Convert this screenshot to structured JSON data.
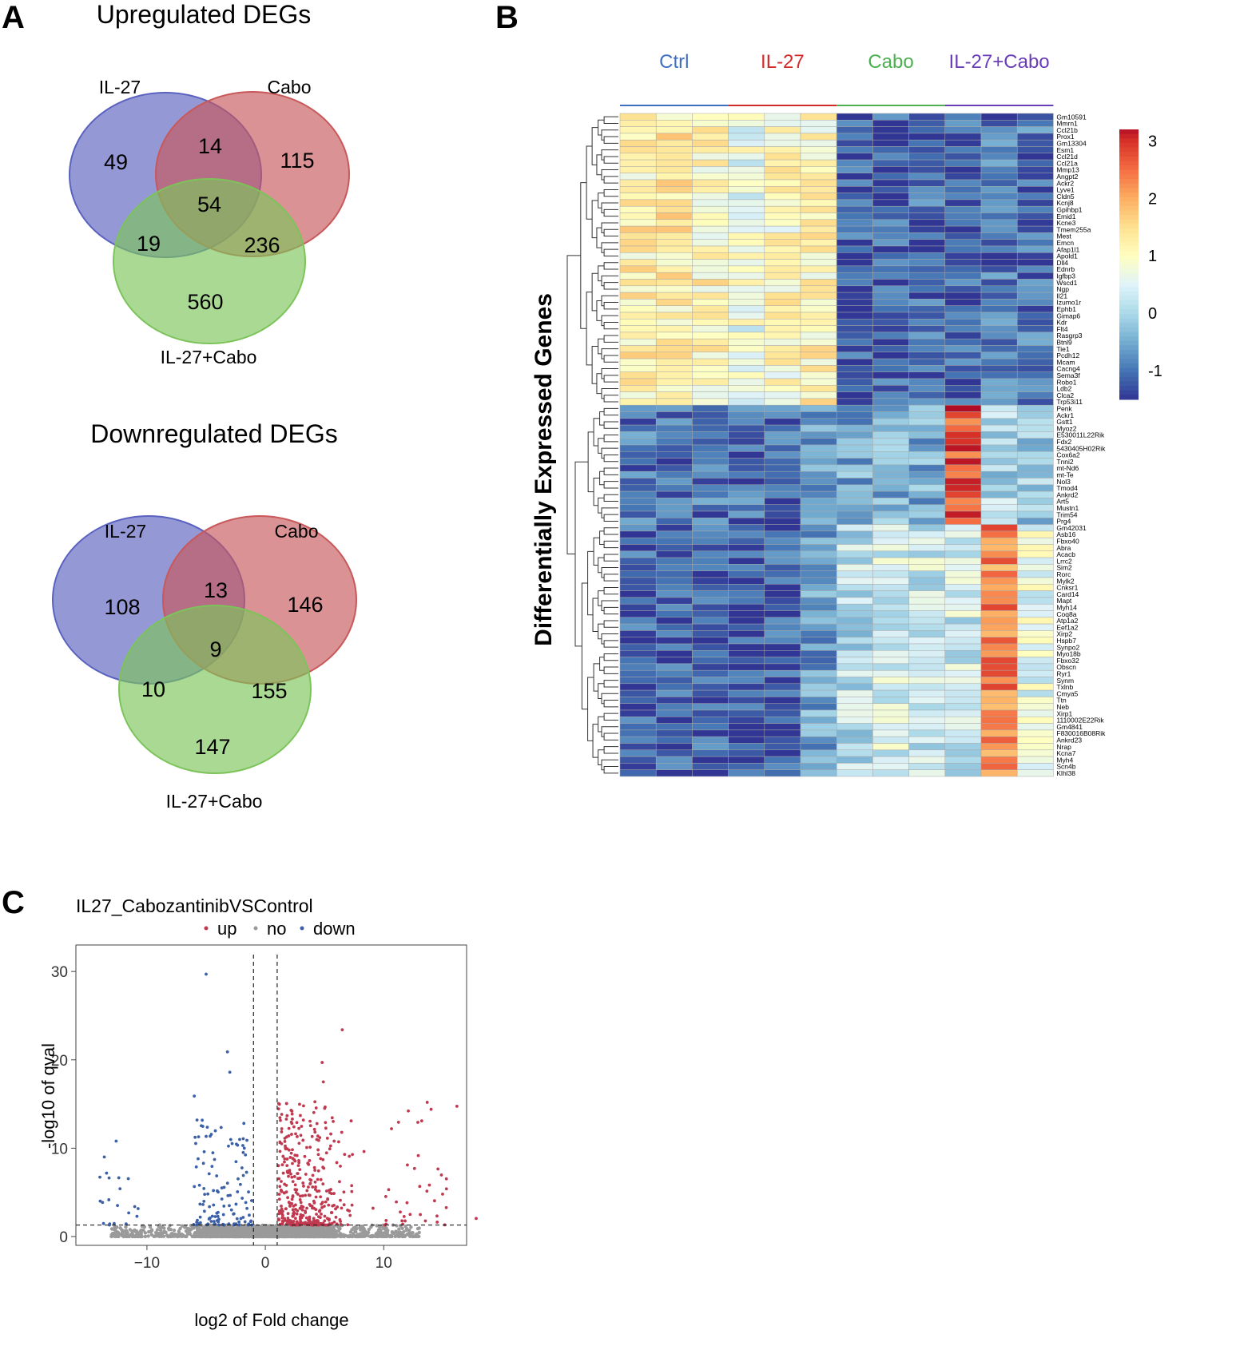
{
  "panels": {
    "a": "A",
    "b": "B",
    "c": "C"
  },
  "venn_up": {
    "title": "Upregulated DEGs",
    "labels": {
      "a": "IL-27",
      "b": "Cabo",
      "c": "IL-27+Cabo"
    },
    "counts": {
      "a_only": "49",
      "ab": "14",
      "b_only": "115",
      "abc": "54",
      "ac": "19",
      "bc": "236",
      "c_only": "560"
    },
    "colors": {
      "a": "#5a62c0",
      "b": "#c8585a",
      "c": "#7cc45a"
    }
  },
  "venn_down": {
    "title": "Downregulated DEGs",
    "labels": {
      "a": "IL-27",
      "b": "Cabo",
      "c": "IL-27+Cabo"
    },
    "counts": {
      "a_only": "108",
      "ab": "13",
      "b_only": "146",
      "abc": "9",
      "ac": "10",
      "bc": "155",
      "c_only": "147"
    },
    "colors": {
      "a": "#5a62c0",
      "b": "#c8585a",
      "c": "#7cc45a"
    }
  },
  "chart_data": [
    {
      "type": "heatmap",
      "ylabel": "Differentially Expressed Genes",
      "groups": [
        {
          "name": "Ctrl",
          "color": "#3f6fc0"
        },
        {
          "name": "IL-27",
          "color": "#d42a2a"
        },
        {
          "name": "Cabo",
          "color": "#4caf50"
        },
        {
          "name": "IL-27+Cabo",
          "color": "#6a3db8"
        }
      ],
      "genes": [
        "Gm10591",
        "Mmrn1",
        "Ccl21b",
        "Prox1",
        "Gm13304",
        "Esm1",
        "Ccl21d",
        "Ccl21a",
        "Mmp13",
        "Angpt2",
        "Ackr2",
        "Lyve1",
        "Cldn5",
        "Kcnj8",
        "Gpihbp1",
        "Emid1",
        "Kcne3",
        "Tmem255a",
        "Mest",
        "Emcn",
        "Afap1l1",
        "Apold1",
        "Dll4",
        "Ednrb",
        "Igfbp3",
        "Wscd1",
        "Ngp",
        "Il21",
        "Izumo1r",
        "Ephb1",
        "Gimap6",
        "Kdr",
        "Flt4",
        "Rasgrp3",
        "Btnl9",
        "Tie1",
        "Pcdh12",
        "Mcam",
        "Cacng4",
        "Sema3f",
        "Robo1",
        "Ldb2",
        "Clca2",
        "Trp53i11",
        "Penk",
        "Ackr1",
        "Gstt1",
        "Myoz2",
        "E530011L22Rik",
        "Fdx2",
        "5430405H02Rik",
        "Cox6a2",
        "Tnni2",
        "mt-Nd6",
        "mt-Te",
        "Nol3",
        "Tmod4",
        "Ankrd2",
        "Art5",
        "Mustn1",
        "Trim54",
        "Prg4",
        "Gm42031",
        "Asb16",
        "Fbxo40",
        "Abra",
        "Acacb",
        "Lrrc2",
        "Sim2",
        "Rorc",
        "Mylk2",
        "Cnksr1",
        "Card14",
        "Mapt",
        "Myh14",
        "Coq8a",
        "Atp1a2",
        "Eef1a2",
        "Xirp2",
        "Hspb7",
        "Synpo2",
        "Myo18b",
        "Fbxo32",
        "Obscn",
        "Ryr1",
        "Synm",
        "Txlnb",
        "Cmya5",
        "Ttn",
        "Neb",
        "Xirp1",
        "1110002E22Rik",
        "Gm4841",
        "F830016B08Rik",
        "Ankrd23",
        "Nrap",
        "Kcna7",
        "Myh4",
        "Scn4b",
        "Klhl38"
      ],
      "samples_per_group": 3,
      "cluster_rows": [
        44,
        18,
        38
      ],
      "cluster_means": [
        [
          1.2,
          1.3,
          1.1,
          0.7,
          1.0,
          1.1,
          -1.2,
          -1.2,
          -1.1,
          -1.2,
          -1.0,
          -1.0
        ],
        [
          -1.0,
          -1.1,
          -1.0,
          -1.0,
          -1.0,
          -0.7,
          -0.5,
          -0.4,
          -0.5,
          2.7,
          0.0,
          -0.2
        ],
        [
          -1.2,
          -1.2,
          -1.2,
          -1.2,
          -1.2,
          -0.6,
          0.1,
          0.4,
          0.3,
          0.3,
          2.3,
          0.6
        ]
      ],
      "colorbar": {
        "ticks": [
          "3",
          "2",
          "1",
          "0",
          "-1"
        ],
        "range": [
          -1.5,
          3.2
        ]
      }
    },
    {
      "type": "scatter",
      "title": "IL27_CabozantinibVSControl",
      "xlabel": "log2 of Fold change",
      "ylabel": "-log10 of qval",
      "xlim": [
        -16,
        17
      ],
      "ylim": [
        -1,
        33
      ],
      "xticks": [
        -10,
        0,
        10
      ],
      "xtick_labels": [
        "−10",
        "0",
        "10"
      ],
      "yticks": [
        0,
        10,
        20,
        30
      ],
      "ytick_labels": [
        "0",
        "10",
        "20",
        "30"
      ],
      "legend": [
        {
          "label": "up",
          "color": "#c0394f"
        },
        {
          "label": "no",
          "color": "#9a9a9a"
        },
        {
          "label": "down",
          "color": "#3b60a8"
        }
      ],
      "thresholds": {
        "fc": [
          -1,
          1
        ],
        "q": 1.3
      },
      "highlighted_points": [
        {
          "x": -5.0,
          "y": 29.7,
          "g": "down"
        },
        {
          "x": 6.5,
          "y": 23.4,
          "g": "up"
        },
        {
          "x": -3.2,
          "y": 20.9,
          "g": "down"
        },
        {
          "x": 4.8,
          "y": 19.7,
          "g": "up"
        },
        {
          "x": -3.0,
          "y": 18.6,
          "g": "down"
        },
        {
          "x": -6.0,
          "y": 15.9,
          "g": "down"
        },
        {
          "x": 14.0,
          "y": 14.4,
          "g": "up"
        },
        {
          "x": 4.9,
          "y": 17.5,
          "g": "up"
        },
        {
          "x": -12.6,
          "y": 10.8,
          "g": "down"
        },
        {
          "x": -13.6,
          "y": 9.0,
          "g": "down"
        },
        {
          "x": 15.3,
          "y": 5.4,
          "g": "up"
        },
        {
          "x": 12.6,
          "y": 7.7,
          "g": "up"
        },
        {
          "x": 12.0,
          "y": 8.1,
          "g": "up"
        }
      ]
    }
  ]
}
